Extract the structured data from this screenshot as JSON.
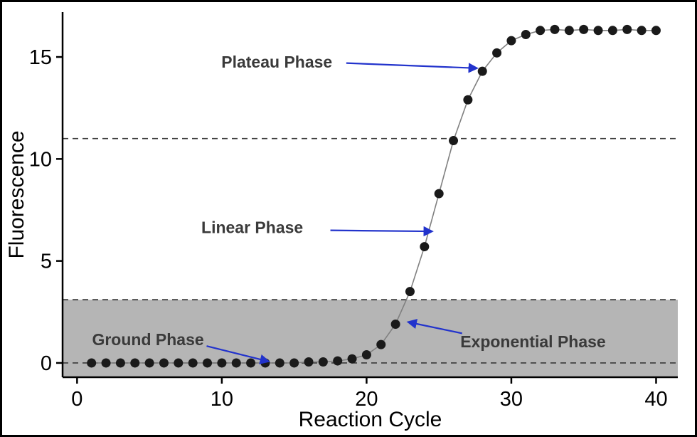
{
  "figure": {
    "description_labels": {
      "xlabel": "Reaction Cycle",
      "ylabel": "Fluorescence"
    }
  },
  "chart_data": {
    "type": "line",
    "title": "",
    "xlabel": "Reaction Cycle",
    "ylabel": "Fluorescence",
    "xlim": [
      -1,
      41.5
    ],
    "ylim": [
      -0.7,
      17.2
    ],
    "xticks": [
      0,
      10,
      20,
      30,
      40
    ],
    "yticks": [
      0,
      5,
      10,
      15
    ],
    "grid": false,
    "legend": "none",
    "x": [
      1,
      2,
      3,
      4,
      5,
      6,
      7,
      8,
      9,
      10,
      11,
      12,
      13,
      14,
      15,
      16,
      17,
      18,
      19,
      20,
      21,
      22,
      23,
      24,
      25,
      26,
      27,
      28,
      29,
      30,
      31,
      32,
      33,
      34,
      35,
      36,
      37,
      38,
      39,
      40
    ],
    "y": [
      0,
      0,
      0,
      0,
      0,
      0,
      0,
      0,
      0,
      0,
      0,
      0,
      0,
      0,
      0,
      0.05,
      0.05,
      0.1,
      0.2,
      0.4,
      0.9,
      1.9,
      3.5,
      5.7,
      8.3,
      10.9,
      12.9,
      14.3,
      15.2,
      15.8,
      16.1,
      16.3,
      16.35,
      16.3,
      16.35,
      16.3,
      16.3,
      16.35,
      16.3,
      16.3
    ],
    "dashed_lines": [
      0,
      3.1,
      11
    ],
    "band": {
      "bottom": -0.7,
      "top": 3.1
    },
    "annotations": [
      {
        "label": "Plateau Phase",
        "tx": 13.8,
        "ty": 14.75,
        "ax1": 18.6,
        "ay1": 14.7,
        "ax2": 27.6,
        "ay2": 14.45
      },
      {
        "label": "Linear Phase",
        "tx": 12.1,
        "ty": 6.65,
        "ax1": 17.5,
        "ay1": 6.5,
        "ax2": 24.5,
        "ay2": 6.45
      },
      {
        "label": "Ground Phase",
        "tx": 4.9,
        "ty": 1.15,
        "ax1": 8.95,
        "ay1": 0.83,
        "ax2": 13.2,
        "ay2": 0.08
      },
      {
        "label": "Exponential Phase",
        "tx": 31.5,
        "ty": 1.05,
        "ax1": 26.6,
        "ay1": 1.45,
        "ax2": 22.9,
        "ay2": 2.0
      }
    ],
    "colors": {
      "point": "#1a1a1a",
      "line": "#808080",
      "arrow": "#2233cc",
      "band": "#b5b5b5",
      "dashed": "#3a3a3a",
      "axis": "#000000"
    }
  }
}
